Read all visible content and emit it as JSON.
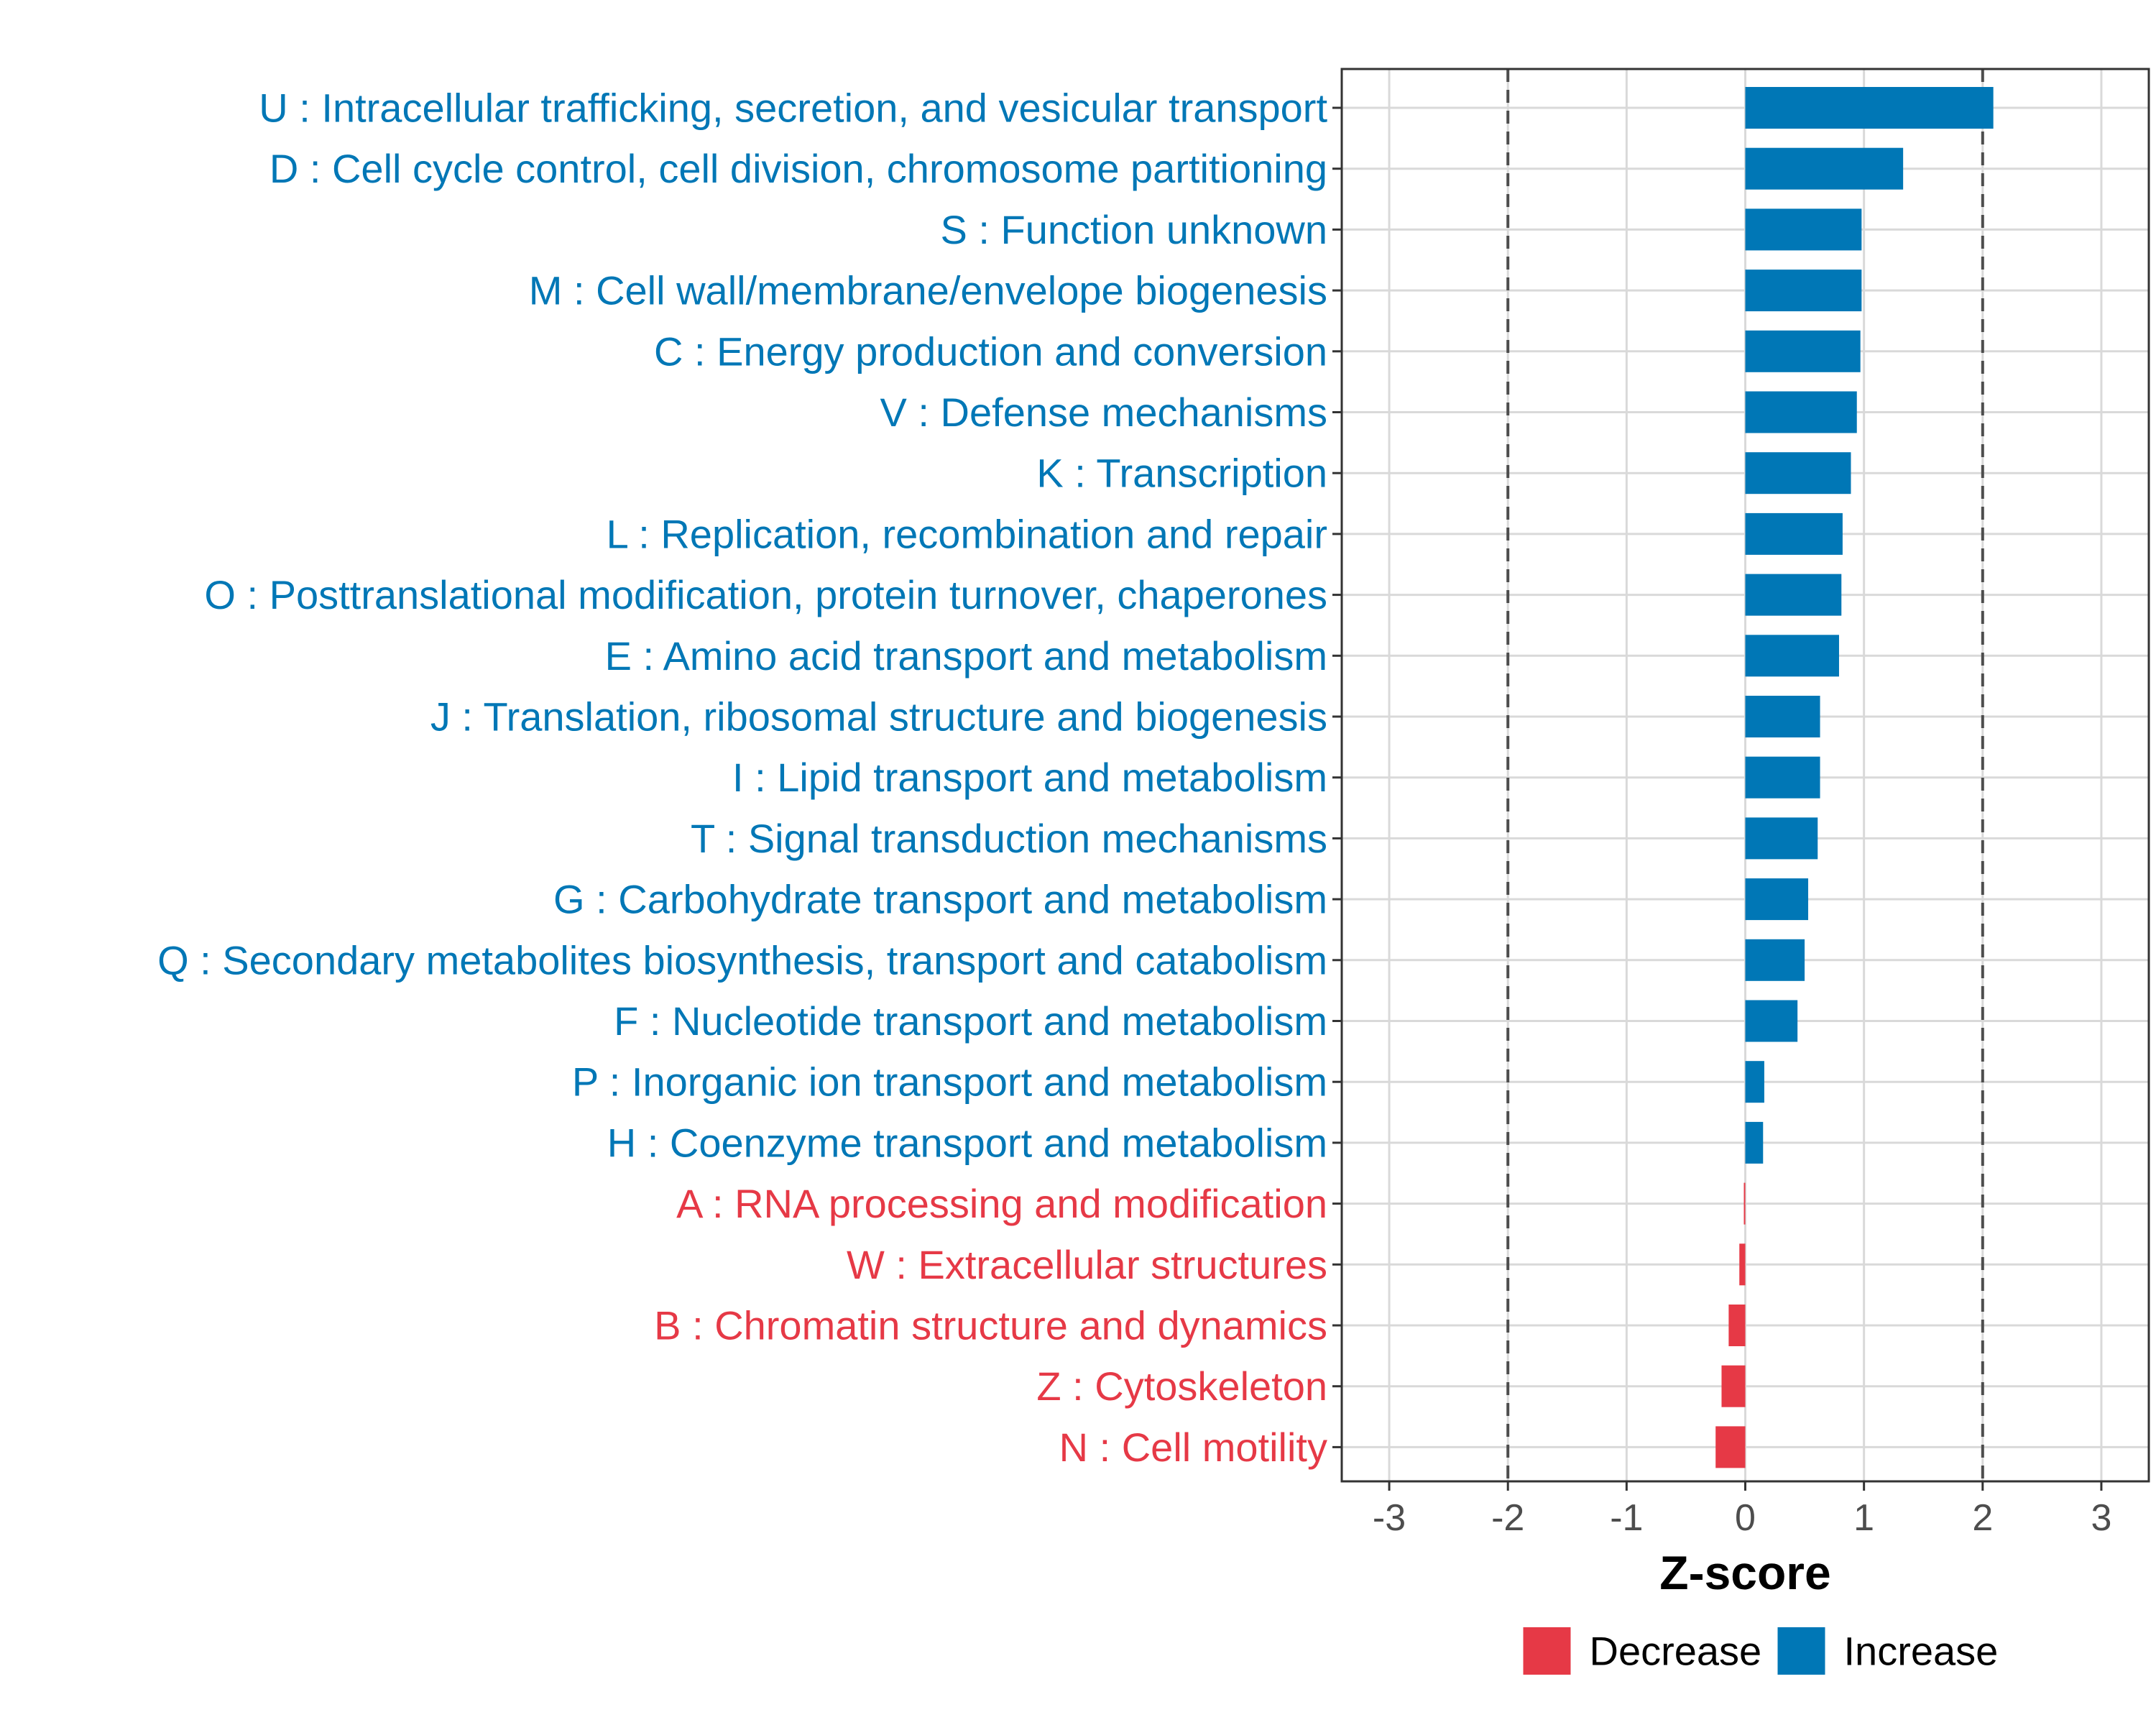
{
  "chart_data": {
    "type": "bar",
    "orientation": "horizontal",
    "title": "",
    "xlabel": "Z-score",
    "ylabel": "",
    "xlim": [
      -3.4,
      3.4
    ],
    "xticks": [
      -3,
      -2,
      -1,
      0,
      1,
      2,
      3
    ],
    "xtick_labels": [
      "-3",
      "-2",
      "-1",
      "0",
      "1",
      "2",
      "3"
    ],
    "reference_lines": [
      -2,
      2
    ],
    "grid": true,
    "categories": [
      "U : Intracellular trafficking, secretion, and vesicular transport",
      "D : Cell cycle control, cell division, chromosome partitioning",
      "S : Function unknown",
      "M : Cell wall/membrane/envelope biogenesis",
      "C : Energy production and conversion",
      "V : Defense mechanisms",
      "K : Transcription",
      "L : Replication, recombination and repair",
      "O : Posttranslational modification, protein turnover, chaperones",
      "E : Amino acid transport and metabolism",
      "J : Translation, ribosomal structure and biogenesis",
      "I : Lipid transport and metabolism",
      "T : Signal transduction mechanisms",
      "G : Carbohydrate transport and metabolism",
      "Q : Secondary metabolites biosynthesis, transport and catabolism",
      "F : Nucleotide transport and metabolism",
      "P : Inorganic ion transport and metabolism",
      "H : Coenzyme transport and metabolism",
      "A : RNA processing and modification",
      "W : Extracellular structures",
      "B : Chromatin structure and dynamics",
      "Z : Cytoskeleton",
      "N : Cell motility"
    ],
    "values": [
      2.09,
      1.33,
      0.98,
      0.98,
      0.97,
      0.94,
      0.89,
      0.82,
      0.81,
      0.79,
      0.63,
      0.63,
      0.61,
      0.53,
      0.5,
      0.44,
      0.16,
      0.15,
      -0.01,
      -0.05,
      -0.14,
      -0.2,
      -0.25
    ],
    "groups": [
      "Increase",
      "Increase",
      "Increase",
      "Increase",
      "Increase",
      "Increase",
      "Increase",
      "Increase",
      "Increase",
      "Increase",
      "Increase",
      "Increase",
      "Increase",
      "Increase",
      "Increase",
      "Increase",
      "Increase",
      "Increase",
      "Decrease",
      "Decrease",
      "Decrease",
      "Decrease",
      "Decrease"
    ],
    "legend": {
      "position": "bottom",
      "entries": [
        {
          "label": "Decrease",
          "color": "#e63946"
        },
        {
          "label": "Increase",
          "color": "#0077b6"
        }
      ]
    },
    "colors": {
      "Increase": "#0077b6",
      "Decrease": "#e63946",
      "grid": "#d9d9d9",
      "reference_line": "#4d4d4d",
      "panel_border": "#333333"
    }
  }
}
